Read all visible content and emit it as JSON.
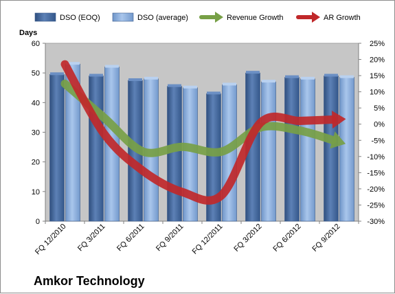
{
  "chart_data": {
    "type": "bar",
    "title": "Amkor Technology",
    "y_axis_left": {
      "label": "Days",
      "range": [
        0,
        60
      ],
      "ticks": [
        "0",
        "10",
        "20",
        "30",
        "40",
        "50",
        "60"
      ]
    },
    "y_axis_right": {
      "label": "",
      "range": [
        -30,
        25
      ],
      "ticks": [
        "25%",
        "20%",
        "15%",
        "10%",
        "5%",
        "0%",
        "-5%",
        "-10%",
        "-15%",
        "-20%",
        "-25%",
        "-30%"
      ]
    },
    "categories": [
      "FQ 12/2010",
      "FQ 3/2011",
      "FQ 6/2011",
      "FQ 9/2011",
      "FQ 12/2011",
      "FQ 3/2012",
      "FQ 6/2012",
      "FQ 9/2012"
    ],
    "series": [
      {
        "name": "DSO (EOQ)",
        "kind": "bar",
        "axis": "left",
        "color": "#4a6fa5",
        "values": [
          49.5,
          49,
          47.5,
          45.5,
          43,
          50,
          48.5,
          49
        ]
      },
      {
        "name": "DSO (average)",
        "kind": "bar",
        "axis": "left",
        "color": "#8eb4e3",
        "values": [
          53,
          52,
          48,
          45,
          46,
          47,
          48,
          48.5
        ]
      },
      {
        "name": "Revenue Growth",
        "kind": "line",
        "axis": "right",
        "color": "#77a046",
        "values": [
          12.5,
          2,
          -8.5,
          -7,
          -8.5,
          -1,
          -2,
          -5.5
        ]
      },
      {
        "name": "AR Growth",
        "kind": "line",
        "axis": "right",
        "color": "#c0282a",
        "values": [
          18.5,
          -3,
          -14.5,
          -21,
          -22,
          0.5,
          1,
          1.5
        ]
      }
    ],
    "grid": false,
    "plot_background": "#c8c8c8",
    "legend_position": "top"
  }
}
